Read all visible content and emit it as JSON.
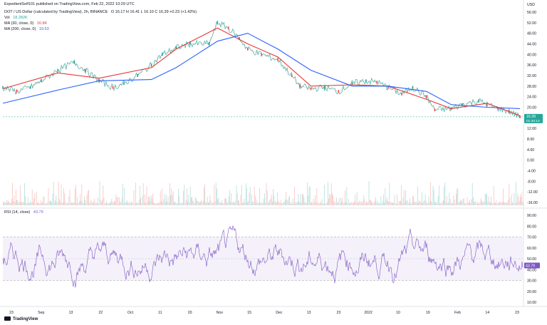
{
  "header": {
    "published_by": "ExpedientSelf101 published on TradingView.com, Feb 22, 2022 10:29 UTC"
  },
  "legend": {
    "symbol": "DOT / US Dollar (calculated by TradingView), 2h, BINANCE",
    "ohlc": "O 16.17  H 16.41  L 16.10  C 16.39  +0.23 (+1.42%)",
    "vol_label": "Vol",
    "vol_value": "18.282K",
    "ma30_label": "MA (30, close, 0)",
    "ma30_value": "16.84",
    "ma200_label": "MA (200, close, 0)",
    "ma200_value": "19.53"
  },
  "rsi_legend": {
    "label": "RSI (14, close)",
    "value": "43.79"
  },
  "footer": {
    "brand": "TradingView"
  },
  "colors": {
    "up": "#26a69a",
    "down": "#ef5350",
    "ma30": "#e53935",
    "ma200": "#2962ff",
    "rsi": "#7e57c2",
    "rsi_band": "#ede7f6"
  },
  "chart_data": [
    {
      "type": "line",
      "title": "DOT / US Dollar, 2h, BINANCE",
      "price_axis_unit": "USD",
      "price_ticks": [
        56.0,
        52.0,
        48.0,
        44.0,
        40.0,
        36.0,
        32.0,
        28.0,
        24.0,
        20.0,
        16.0,
        12.0,
        8.0,
        4.0,
        0.0,
        -4.0,
        -8.0,
        -12.0,
        -16.0
      ],
      "current_price_label": "16.39",
      "countdown_label": "01:30:13",
      "x_tick_labels": [
        "23",
        "Sep",
        "13",
        "22",
        "Oct",
        "11",
        "20",
        "Nov",
        "15",
        "Dec",
        "13",
        "23",
        "2022",
        "10",
        "19",
        "Feb",
        "14",
        "23"
      ],
      "series": [
        {
          "name": "DOT price (approx. close)",
          "x": [
            "Aug 18",
            "Aug 23",
            "Aug 28",
            "Sep 1",
            "Sep 7",
            "Sep 13",
            "Sep 17",
            "Sep 22",
            "Sep 27",
            "Oct 1",
            "Oct 6",
            "Oct 11",
            "Oct 15",
            "Oct 20",
            "Oct 25",
            "Nov 1",
            "Nov 4",
            "Nov 8",
            "Nov 12",
            "Nov 15",
            "Nov 20",
            "Nov 26",
            "Dec 1",
            "Dec 4",
            "Dec 8",
            "Dec 13",
            "Dec 18",
            "Dec 23",
            "Dec 28",
            "Jan 1",
            "Jan 5",
            "Jan 10",
            "Jan 14",
            "Jan 19",
            "Jan 22",
            "Jan 28",
            "Feb 1",
            "Feb 7",
            "Feb 10",
            "Feb 14",
            "Feb 18",
            "Feb 22"
          ],
          "y": [
            27.5,
            26.0,
            27.5,
            30.0,
            34.0,
            37.0,
            34.0,
            30.0,
            27.5,
            29.0,
            32.0,
            36.0,
            40.0,
            42.5,
            44.0,
            44.0,
            52.0,
            50.0,
            46.0,
            42.0,
            40.0,
            38.0,
            32.0,
            28.0,
            27.0,
            27.5,
            26.0,
            29.0,
            30.0,
            29.5,
            27.5,
            25.0,
            27.5,
            24.0,
            19.0,
            19.5,
            21.0,
            22.5,
            21.0,
            19.5,
            18.5,
            16.4
          ]
        },
        {
          "name": "MA (30, close, 0)",
          "x": [
            "Aug 18",
            "Sep 7",
            "Sep 22",
            "Oct 11",
            "Oct 20",
            "Nov 4",
            "Nov 15",
            "Nov 26",
            "Dec 8",
            "Dec 23",
            "Jan 5",
            "Jan 19",
            "Jan 28",
            "Feb 10",
            "Feb 22"
          ],
          "y": [
            27.0,
            33.0,
            31.0,
            35.0,
            42.0,
            50.0,
            44.0,
            39.0,
            28.0,
            28.5,
            28.0,
            23.0,
            19.5,
            21.5,
            16.8
          ]
        },
        {
          "name": "MA (200, close, 0)",
          "x": [
            "Aug 18",
            "Sep 7",
            "Sep 22",
            "Oct 11",
            "Oct 20",
            "Nov 4",
            "Nov 15",
            "Nov 26",
            "Dec 8",
            "Dec 23",
            "Jan 5",
            "Jan 19",
            "Jan 28",
            "Feb 10",
            "Feb 22"
          ],
          "y": [
            21.5,
            26.5,
            30.0,
            30.5,
            35.0,
            45.0,
            48.0,
            42.0,
            34.0,
            28.0,
            28.0,
            26.0,
            21.0,
            20.0,
            19.5
          ]
        }
      ]
    },
    {
      "type": "line",
      "title": "RSI (14, close)",
      "rsi_ticks": [
        90.0,
        80.0,
        70.0,
        60.0,
        50.0,
        40.0,
        30.0,
        20.0,
        10.0
      ],
      "band": [
        30,
        70
      ],
      "current_value": 43.79,
      "ylim": [
        10,
        90
      ]
    }
  ]
}
